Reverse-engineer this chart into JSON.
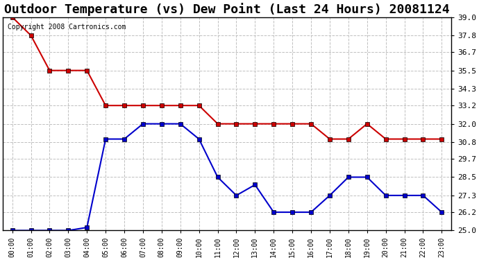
{
  "title": "Outdoor Temperature (vs) Dew Point (Last 24 Hours) 20081124",
  "copyright_text": "Copyright 2008 Cartronics.com",
  "hours": [
    "00:00",
    "01:00",
    "02:00",
    "03:00",
    "04:00",
    "05:00",
    "06:00",
    "07:00",
    "08:00",
    "09:00",
    "10:00",
    "11:00",
    "12:00",
    "13:00",
    "14:00",
    "15:00",
    "16:00",
    "17:00",
    "18:00",
    "19:00",
    "20:00",
    "21:00",
    "22:00",
    "23:00"
  ],
  "temp_red": [
    39.0,
    37.8,
    35.5,
    35.5,
    35.5,
    33.2,
    33.2,
    33.2,
    33.2,
    33.2,
    33.2,
    32.0,
    32.0,
    32.0,
    32.0,
    32.0,
    32.0,
    31.0,
    31.0,
    32.0,
    31.0,
    31.0,
    31.0,
    31.0
  ],
  "dew_blue": [
    25.0,
    25.0,
    25.0,
    25.0,
    25.2,
    31.0,
    31.0,
    32.0,
    32.0,
    32.0,
    31.0,
    28.5,
    27.3,
    28.0,
    26.2,
    26.2,
    26.2,
    27.3,
    28.5,
    28.5,
    27.3,
    27.3,
    27.3,
    26.2
  ],
  "ylim_min": 25.0,
  "ylim_max": 39.0,
  "yticks": [
    25.0,
    26.2,
    27.3,
    28.5,
    29.7,
    30.8,
    32.0,
    33.2,
    34.3,
    35.5,
    36.7,
    37.8,
    39.0
  ],
  "bg_color": "#ffffff",
  "grid_color": "#c0c0c0",
  "temp_color": "#cc0000",
  "dew_color": "#0000cc",
  "marker": "s",
  "marker_size": 4,
  "line_width": 1.5,
  "title_fontsize": 13
}
